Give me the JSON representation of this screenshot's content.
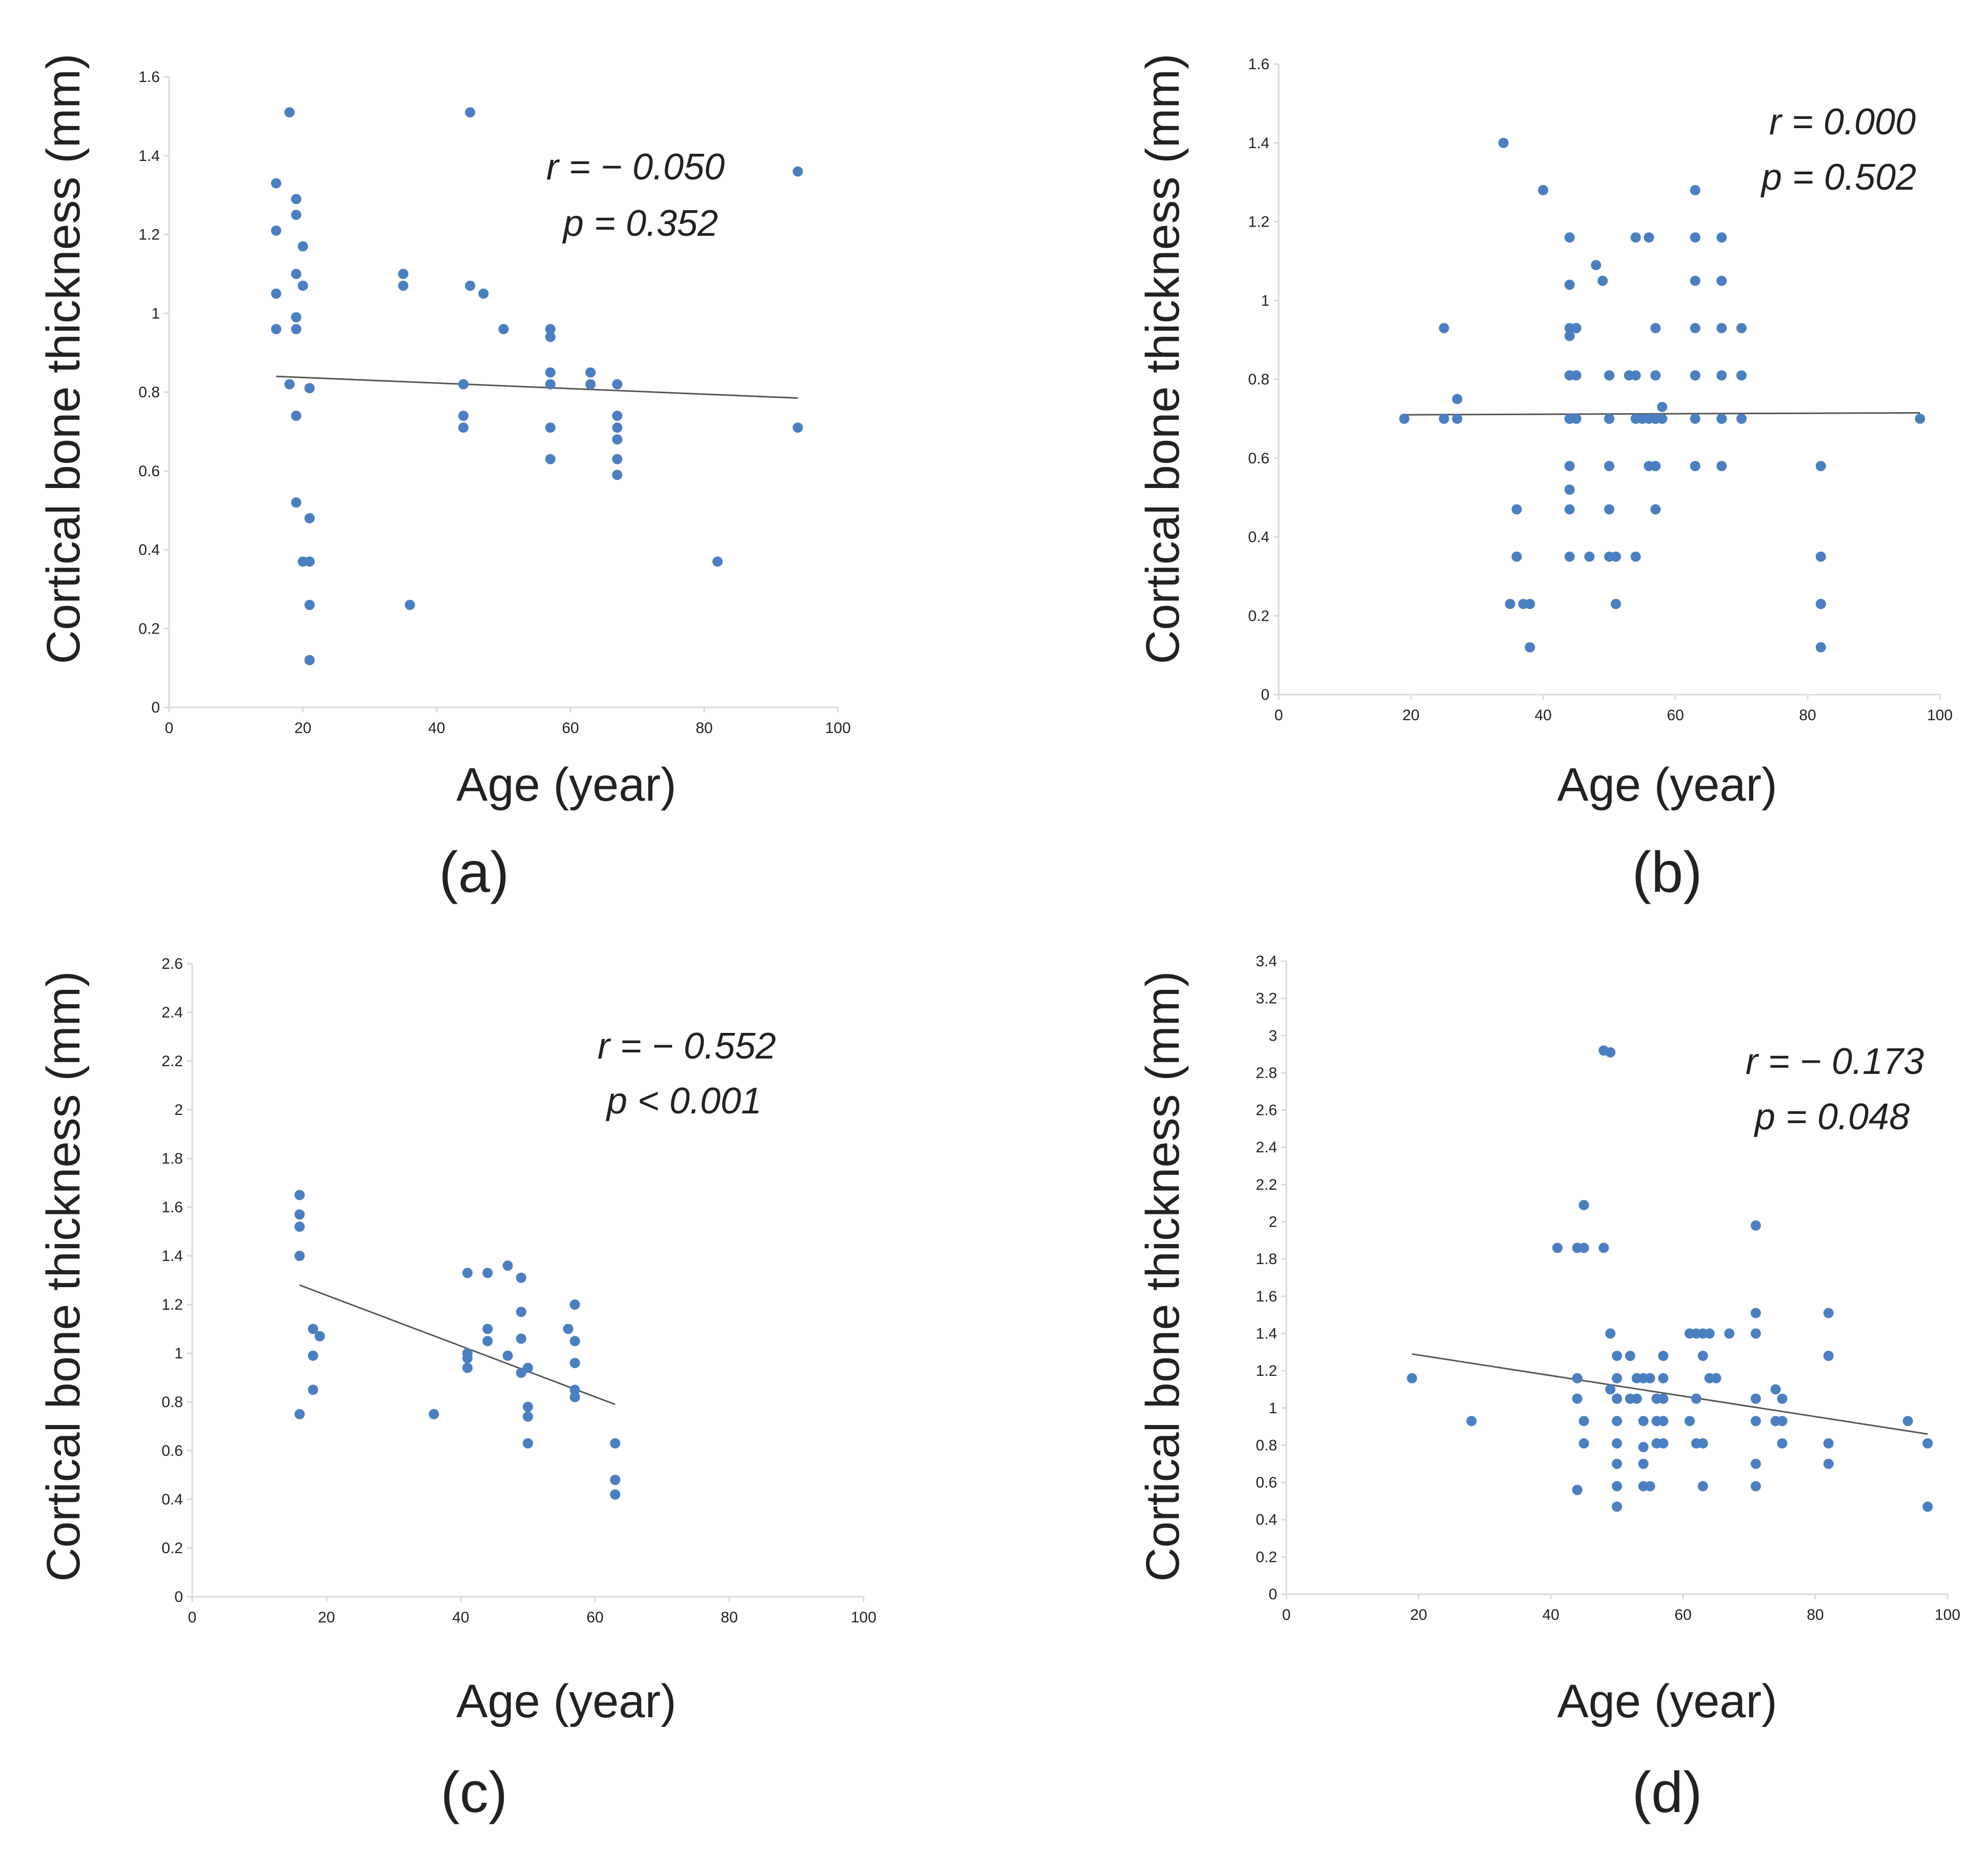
{
  "point_color": "#4a7fc1",
  "chart_data": [
    {
      "type": "scatter",
      "panel_label": "(a)",
      "xlabel": "Age (year)",
      "ylabel": "Cortical bone thickness (mm)",
      "xlim": [
        0,
        100
      ],
      "ylim": [
        0,
        1.6
      ],
      "x_ticks": [
        0,
        20,
        40,
        60,
        80,
        100
      ],
      "y_ticks": [
        0,
        0.2,
        0.4,
        0.6,
        0.8,
        1,
        1.2,
        1.4,
        1.6
      ],
      "annotation": {
        "r": "r = − 0.050",
        "p": "p = 0.352"
      },
      "trend": {
        "x": [
          16,
          94
        ],
        "y": [
          0.84,
          0.785
        ]
      },
      "points": {
        "x": [
          18,
          16,
          16,
          16,
          16,
          19,
          19,
          19,
          19,
          19,
          20,
          20,
          18,
          19,
          21,
          19,
          21,
          20,
          21,
          21,
          21,
          35,
          35,
          36,
          45,
          45,
          47,
          44,
          44,
          44,
          50,
          57,
          57,
          57,
          57,
          57,
          57,
          63,
          63,
          67,
          67,
          67,
          67,
          67,
          67,
          82,
          94,
          94
        ],
        "y": [
          1.51,
          1.33,
          1.21,
          1.05,
          0.96,
          1.29,
          1.25,
          1.1,
          0.99,
          0.96,
          1.17,
          1.07,
          0.82,
          0.74,
          0.81,
          0.52,
          0.48,
          0.37,
          0.37,
          0.26,
          0.12,
          1.1,
          1.07,
          0.26,
          1.51,
          1.07,
          1.05,
          0.82,
          0.74,
          0.71,
          0.96,
          0.96,
          0.94,
          0.85,
          0.82,
          0.71,
          0.63,
          0.85,
          0.82,
          0.82,
          0.74,
          0.71,
          0.68,
          0.63,
          0.59,
          0.37,
          1.36,
          0.71
        ]
      }
    },
    {
      "type": "scatter",
      "panel_label": "(b)",
      "xlabel": "Age (year)",
      "ylabel": "Cortical bone thickness (mm)",
      "xlim": [
        0,
        100
      ],
      "ylim": [
        0,
        1.6
      ],
      "x_ticks": [
        0,
        20,
        40,
        60,
        80,
        100
      ],
      "y_ticks": [
        0,
        0.2,
        0.4,
        0.6,
        0.8,
        1,
        1.2,
        1.4,
        1.6
      ],
      "annotation": {
        "r": "r = 0.000",
        "p": "p = 0.502"
      },
      "trend": {
        "x": [
          19,
          97
        ],
        "y": [
          0.71,
          0.715
        ]
      },
      "points": {
        "x": [
          19,
          25,
          25,
          27,
          27,
          34,
          35,
          36,
          36,
          37,
          38,
          38,
          40,
          44,
          44,
          44,
          44,
          44,
          44,
          44,
          44,
          44,
          44,
          44,
          45,
          45,
          45,
          45,
          45,
          47,
          48,
          49,
          50,
          50,
          50,
          50,
          50,
          50,
          50,
          51,
          51,
          53,
          54,
          54,
          54,
          54,
          55,
          56,
          56,
          56,
          57,
          57,
          57,
          57,
          57,
          57,
          58,
          58,
          63,
          63,
          63,
          63,
          63,
          63,
          63,
          63,
          67,
          67,
          67,
          67,
          67,
          67,
          70,
          70,
          70,
          82,
          82,
          82,
          82,
          97
        ],
        "y": [
          0.7,
          0.93,
          0.7,
          0.75,
          0.7,
          1.4,
          0.23,
          0.47,
          0.35,
          0.23,
          0.23,
          0.12,
          1.28,
          1.16,
          1.04,
          0.93,
          0.91,
          0.81,
          0.7,
          0.58,
          0.52,
          0.47,
          0.35,
          0.7,
          0.93,
          0.81,
          0.7,
          0.93,
          0.81,
          0.35,
          1.09,
          1.05,
          0.81,
          0.7,
          0.58,
          0.47,
          0.35,
          0.81,
          0.7,
          0.35,
          0.23,
          0.81,
          1.16,
          0.81,
          0.7,
          0.35,
          0.7,
          1.16,
          0.7,
          0.58,
          0.93,
          0.81,
          0.7,
          0.58,
          0.47,
          0.7,
          0.73,
          0.7,
          1.28,
          1.16,
          1.05,
          0.93,
          0.81,
          0.7,
          0.58,
          0.81,
          1.16,
          1.05,
          0.93,
          0.81,
          0.7,
          0.58,
          0.93,
          0.81,
          0.7,
          0.58,
          0.35,
          0.23,
          0.12,
          0.7
        ]
      }
    },
    {
      "type": "scatter",
      "panel_label": "(c)",
      "xlabel": "Age (year)",
      "ylabel": "Cortical bone thickness (mm)",
      "xlim": [
        0,
        100
      ],
      "ylim": [
        0,
        2.6
      ],
      "x_ticks": [
        0,
        20,
        40,
        60,
        80,
        100
      ],
      "y_ticks": [
        0,
        0.2,
        0.4,
        0.6,
        0.8,
        1,
        1.2,
        1.4,
        1.6,
        1.8,
        2,
        2.2,
        2.4,
        2.6
      ],
      "annotation": {
        "r": "r = − 0.552",
        "p": "p < 0.001"
      },
      "trend": {
        "x": [
          16,
          63
        ],
        "y": [
          1.28,
          0.79
        ]
      },
      "points": {
        "x": [
          16,
          16,
          16,
          16,
          16,
          18,
          19,
          18,
          18,
          36,
          41,
          41,
          41,
          41,
          44,
          44,
          44,
          47,
          47,
          49,
          49,
          49,
          49,
          50,
          50,
          50,
          50,
          56,
          57,
          57,
          57,
          57,
          57,
          63,
          63,
          63
        ],
        "y": [
          1.65,
          1.57,
          1.52,
          1.4,
          0.75,
          1.1,
          1.07,
          0.99,
          0.85,
          0.75,
          1.33,
          1.0,
          0.98,
          0.94,
          1.33,
          1.1,
          1.05,
          1.36,
          0.99,
          1.31,
          1.17,
          1.06,
          0.92,
          0.94,
          0.78,
          0.74,
          0.63,
          1.1,
          1.2,
          1.05,
          0.96,
          0.85,
          0.82,
          0.63,
          0.48,
          0.42
        ]
      }
    },
    {
      "type": "scatter",
      "panel_label": "(d)",
      "xlabel": "Age (year)",
      "ylabel": "Cortical bone thickness (mm)",
      "xlim": [
        0,
        100
      ],
      "ylim": [
        0,
        3.4
      ],
      "x_ticks": [
        0,
        20,
        40,
        60,
        80,
        100
      ],
      "y_ticks": [
        0,
        0.2,
        0.4,
        0.6,
        0.8,
        1,
        1.2,
        1.4,
        1.6,
        1.8,
        2,
        2.2,
        2.4,
        2.6,
        2.8,
        3,
        3.2,
        3.4
      ],
      "annotation": {
        "r": "r = − 0.173",
        "p": "p = 0.048"
      },
      "trend": {
        "x": [
          19,
          97
        ],
        "y": [
          1.29,
          0.86
        ]
      },
      "points": {
        "x": [
          19,
          28,
          41,
          44,
          44,
          44,
          44,
          45,
          45,
          45,
          45,
          48,
          48,
          49,
          49,
          49,
          50,
          50,
          50,
          50,
          50,
          50,
          50,
          50,
          50,
          52,
          52,
          53,
          53,
          54,
          54,
          54,
          54,
          54,
          55,
          55,
          56,
          56,
          56,
          57,
          57,
          57,
          57,
          57,
          61,
          61,
          62,
          62,
          62,
          63,
          63,
          63,
          63,
          64,
          64,
          65,
          67,
          71,
          71,
          71,
          71,
          71,
          71,
          71,
          74,
          74,
          75,
          75,
          75,
          82,
          82,
          82,
          82,
          94,
          97,
          97
        ],
        "y": [
          1.16,
          0.93,
          1.86,
          1.16,
          1.05,
          0.56,
          1.86,
          2.09,
          1.86,
          0.93,
          0.81,
          1.86,
          2.92,
          2.91,
          1.4,
          1.1,
          1.28,
          1.16,
          1.05,
          0.93,
          0.81,
          0.7,
          0.58,
          0.47,
          1.05,
          1.28,
          1.05,
          1.16,
          1.05,
          1.16,
          0.93,
          0.79,
          0.7,
          0.58,
          1.16,
          0.58,
          1.05,
          0.93,
          0.81,
          1.28,
          1.16,
          1.05,
          0.93,
          0.81,
          1.4,
          0.93,
          1.4,
          1.05,
          0.81,
          1.4,
          1.28,
          0.81,
          0.58,
          1.4,
          1.16,
          1.16,
          1.4,
          1.98,
          1.51,
          1.4,
          1.05,
          0.93,
          0.7,
          0.58,
          1.1,
          0.93,
          1.05,
          0.93,
          0.81,
          1.51,
          1.28,
          0.81,
          0.7,
          0.93,
          0.81,
          0.47
        ]
      }
    }
  ]
}
